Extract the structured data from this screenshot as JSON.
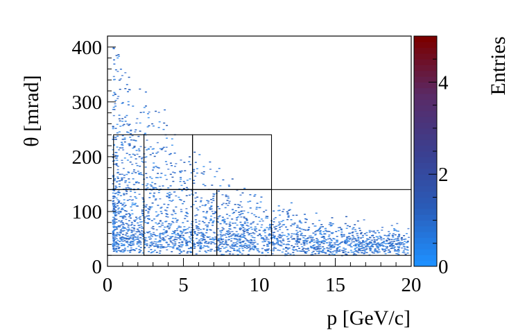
{
  "chart_data": {
    "type": "heatmap",
    "xlabel": "p [GeV/c]",
    "ylabel": "θ [mrad]",
    "zlabel": "Entries",
    "xlim": [
      0,
      20
    ],
    "ylim": [
      0,
      420
    ],
    "zlim": [
      0,
      5
    ],
    "xticks": [
      0,
      5,
      10,
      15,
      20
    ],
    "yticks": [
      0,
      100,
      200,
      300,
      400
    ],
    "zticks": [
      0,
      2,
      4
    ],
    "colormap": [
      "#1e90ff",
      "#2a5cb8",
      "#3b3f8f",
      "#5a2a66",
      "#7a0000"
    ],
    "bin_regions": [
      {
        "p": [
          0.4,
          2.4
        ],
        "theta": [
          140,
          240
        ]
      },
      {
        "p": [
          2.4,
          5.6
        ],
        "theta": [
          140,
          240
        ]
      },
      {
        "p": [
          5.6,
          10.8
        ],
        "theta": [
          140,
          240
        ]
      },
      {
        "p": [
          2.4,
          5.6
        ],
        "theta": [
          20,
          140
        ]
      },
      {
        "p": [
          5.6,
          7.2
        ],
        "theta": [
          20,
          140
        ]
      },
      {
        "p": [
          7.2,
          10.8
        ],
        "theta": [
          20,
          140
        ]
      },
      {
        "p": [
          0,
          20
        ],
        "theta": [
          20,
          140
        ]
      }
    ]
  }
}
